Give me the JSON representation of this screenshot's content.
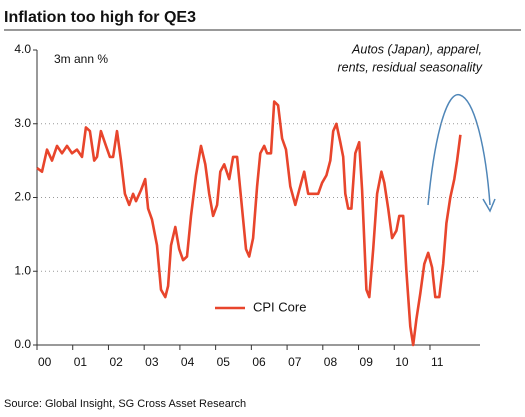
{
  "chart_data": {
    "type": "line",
    "title": "Inflation too high for QE3",
    "ylabel": "3m ann %",
    "annotation": [
      "Autos (Japan), apparel,",
      "rents, residual seasonality"
    ],
    "source": "Source: Global Insight, SG Cross Asset Research",
    "legend": "lower-center",
    "grid": true,
    "xlim": [
      0,
      12.4
    ],
    "xticks": [
      {
        "value": 0,
        "label": "00"
      },
      {
        "value": 1,
        "label": "01"
      },
      {
        "value": 2,
        "label": "02"
      },
      {
        "value": 3,
        "label": "03"
      },
      {
        "value": 4,
        "label": "04"
      },
      {
        "value": 5,
        "label": "05"
      },
      {
        "value": 6,
        "label": "06"
      },
      {
        "value": 7,
        "label": "07"
      },
      {
        "value": 8,
        "label": "08"
      },
      {
        "value": 9,
        "label": "09"
      },
      {
        "value": 10,
        "label": "10"
      },
      {
        "value": 11,
        "label": "11"
      }
    ],
    "ylim": [
      0,
      4
    ],
    "yticks": [
      {
        "value": 0,
        "label": "0.0"
      },
      {
        "value": 1,
        "label": "1.0"
      },
      {
        "value": 2,
        "label": "2.0"
      },
      {
        "value": 3,
        "label": "3.0"
      },
      {
        "value": 4,
        "label": "4.0"
      }
    ],
    "x": [
      0.0,
      0.14,
      0.28,
      0.42,
      0.56,
      0.7,
      0.84,
      0.98,
      1.12,
      1.26,
      1.37,
      1.48,
      1.6,
      1.68,
      1.79,
      1.93,
      2.04,
      2.13,
      2.24,
      2.35,
      2.46,
      2.58,
      2.69,
      2.77,
      2.91,
      3.03,
      3.11,
      3.22,
      3.36,
      3.47,
      3.59,
      3.67,
      3.75,
      3.87,
      3.98,
      4.09,
      4.2,
      4.31,
      4.45,
      4.59,
      4.71,
      4.82,
      4.93,
      5.04,
      5.13,
      5.24,
      5.38,
      5.49,
      5.6,
      5.71,
      5.85,
      5.94,
      6.05,
      6.16,
      6.25,
      6.36,
      6.44,
      6.55,
      6.64,
      6.75,
      6.86,
      6.97,
      7.09,
      7.23,
      7.34,
      7.48,
      7.59,
      7.73,
      7.87,
      7.98,
      8.1,
      8.21,
      8.29,
      8.38,
      8.49,
      8.57,
      8.63,
      8.71,
      8.8,
      8.91,
      9.02,
      9.1,
      9.22,
      9.3,
      9.41,
      9.52,
      9.64,
      9.72,
      9.83,
      9.94,
      10.06,
      10.14,
      10.25,
      10.34,
      10.45,
      10.53,
      10.62,
      10.73,
      10.84,
      10.95,
      11.06,
      11.15,
      11.26,
      11.37,
      11.46,
      11.57,
      11.68,
      11.76,
      11.85
    ],
    "series": [
      {
        "name": "CPI Core",
        "color": "#e8452c",
        "values": [
          2.4,
          2.35,
          2.65,
          2.5,
          2.7,
          2.6,
          2.7,
          2.6,
          2.65,
          2.55,
          2.95,
          2.9,
          2.5,
          2.55,
          2.9,
          2.7,
          2.55,
          2.55,
          2.9,
          2.5,
          2.05,
          1.9,
          2.05,
          1.95,
          2.1,
          2.25,
          1.85,
          1.7,
          1.35,
          0.75,
          0.65,
          0.8,
          1.35,
          1.6,
          1.3,
          1.15,
          1.2,
          1.75,
          2.3,
          2.7,
          2.45,
          2.05,
          1.75,
          1.9,
          2.35,
          2.45,
          2.25,
          2.55,
          2.55,
          2.0,
          1.3,
          1.2,
          1.45,
          2.15,
          2.6,
          2.7,
          2.6,
          2.6,
          3.3,
          3.25,
          2.8,
          2.65,
          2.15,
          1.9,
          2.1,
          2.35,
          2.05,
          2.05,
          2.05,
          2.2,
          2.3,
          2.5,
          2.9,
          3.0,
          2.75,
          2.55,
          2.05,
          1.85,
          1.85,
          2.6,
          2.75,
          2.1,
          0.75,
          0.65,
          1.3,
          2.05,
          2.35,
          2.2,
          1.85,
          1.45,
          1.55,
          1.75,
          1.75,
          1.0,
          0.25,
          0.0,
          0.35,
          0.7,
          1.1,
          1.25,
          1.05,
          0.65,
          0.65,
          1.1,
          1.65,
          2.0,
          2.25,
          2.5,
          2.85
        ]
      }
    ]
  }
}
